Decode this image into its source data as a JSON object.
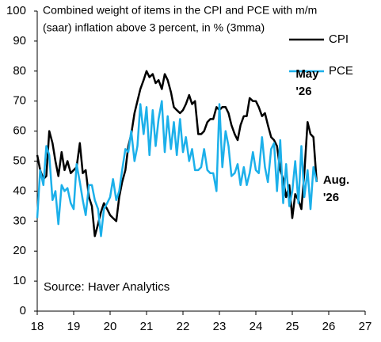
{
  "chart_data": {
    "type": "line",
    "title": [
      "Combined weight of items in the CPI and PCE with m/m",
      "(saar) inflation above 3 percent, in % (3mma)"
    ],
    "source": "Source: Haver Analytics",
    "annotations": [
      {
        "lines": [
          "May",
          "'26"
        ],
        "x": 25.42,
        "y": 63
      },
      {
        "lines": [
          "Aug.",
          "'26"
        ],
        "x": 25.67,
        "y": 43
      }
    ],
    "legend": "top-right",
    "x": [
      18,
      18.08,
      18.17,
      18.25,
      18.33,
      18.42,
      18.5,
      18.58,
      18.67,
      18.75,
      18.83,
      18.92,
      19,
      19.08,
      19.17,
      19.25,
      19.33,
      19.42,
      19.5,
      19.58,
      19.67,
      19.75,
      19.83,
      19.92,
      20,
      20.08,
      20.17,
      20.25,
      20.33,
      20.42,
      20.5,
      20.58,
      20.67,
      20.75,
      20.83,
      20.92,
      21,
      21.08,
      21.17,
      21.25,
      21.33,
      21.42,
      21.5,
      21.58,
      21.67,
      21.75,
      21.83,
      21.92,
      22,
      22.08,
      22.17,
      22.25,
      22.33,
      22.42,
      22.5,
      22.58,
      22.67,
      22.75,
      22.83,
      22.92,
      23,
      23.08,
      23.17,
      23.25,
      23.33,
      23.42,
      23.5,
      23.58,
      23.67,
      23.75,
      23.83,
      23.92,
      24,
      24.08,
      24.17,
      24.25,
      24.33,
      24.42,
      24.5,
      24.58,
      24.67,
      24.75,
      24.83,
      24.92,
      25,
      25.08,
      25.17,
      25.25,
      25.33,
      25.42,
      25.5,
      25.58,
      25.67
    ],
    "series": [
      {
        "name": "CPI",
        "color": "#000000",
        "values": [
          52,
          47,
          44,
          45,
          60,
          56,
          50,
          45,
          53,
          47,
          50,
          46,
          47,
          48,
          56,
          46,
          47,
          38,
          35,
          25,
          29,
          33,
          36,
          34,
          32,
          31,
          30,
          38,
          43,
          47,
          55,
          59,
          66,
          70,
          74,
          77,
          80,
          78,
          79,
          76,
          77,
          74,
          79,
          77,
          73,
          68,
          67,
          66,
          67,
          69,
          72,
          69,
          70,
          59,
          59,
          60,
          63,
          64,
          64,
          68,
          67,
          68,
          68,
          66,
          62,
          59,
          57,
          62,
          65,
          65,
          71,
          70,
          70,
          68,
          65,
          66,
          62,
          58,
          57,
          55,
          47,
          44,
          38,
          42,
          31,
          39,
          37,
          34,
          46,
          63,
          59,
          58,
          43
        ]
      },
      {
        "name": "PCE",
        "color": "#1cb0ea",
        "values": [
          31,
          47,
          42,
          55,
          52,
          37,
          40,
          29,
          42,
          40,
          41,
          36,
          34,
          49,
          43,
          37,
          32,
          42,
          42,
          37,
          34,
          25,
          34,
          36,
          38,
          44,
          37,
          40,
          47,
          54,
          53,
          60,
          50,
          55,
          69,
          59,
          68,
          52,
          67,
          55,
          64,
          70,
          53,
          65,
          54,
          63,
          52,
          64,
          53,
          58,
          50,
          54,
          47,
          47,
          48,
          54,
          47,
          46,
          46,
          40,
          69,
          48,
          60,
          55,
          45,
          46,
          49,
          42,
          48,
          42,
          46,
          53,
          47,
          46,
          58,
          48,
          43,
          54,
          56,
          40,
          57,
          36,
          49,
          35,
          40,
          50,
          36,
          55,
          38,
          47,
          34,
          48,
          43
        ]
      }
    ],
    "xlim": [
      18,
      27
    ],
    "xticks": [
      18,
      19,
      20,
      21,
      22,
      23,
      24,
      25,
      26,
      27
    ],
    "ylim": [
      0,
      100
    ],
    "yticks": [
      0,
      10,
      20,
      30,
      40,
      50,
      60,
      70,
      80,
      90,
      100
    ]
  }
}
